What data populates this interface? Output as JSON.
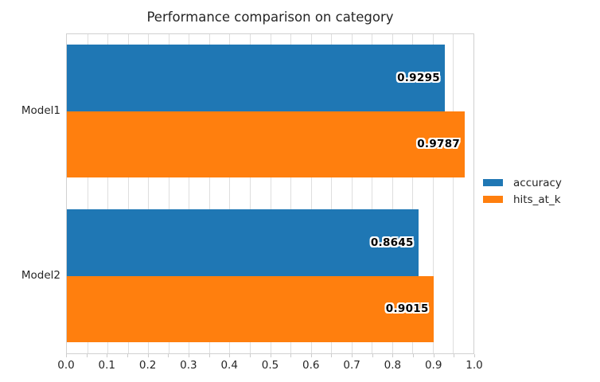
{
  "chart_data": {
    "type": "bar",
    "orientation": "horizontal",
    "title": "Performance comparison on category",
    "categories": [
      "Model1",
      "Model2"
    ],
    "series": [
      {
        "name": "accuracy",
        "color": "#1f77b4",
        "values": [
          0.9295,
          0.8645
        ],
        "labels": [
          "0.9295",
          "0.8645"
        ]
      },
      {
        "name": "hits_at_k",
        "color": "#ff7f0e",
        "values": [
          0.9787,
          0.9015
        ],
        "labels": [
          "0.9787",
          "0.9015"
        ]
      }
    ],
    "xlim": [
      0.0,
      1.0
    ],
    "x_tick_labels": [
      "0.0",
      "0.1",
      "0.2",
      "0.3",
      "0.4",
      "0.5",
      "0.6",
      "0.7",
      "0.8",
      "0.9",
      "1.0"
    ],
    "minor_grid_step": 0.05,
    "grid": true,
    "legend": {
      "position": "center-right-outside",
      "entries": [
        "accuracy",
        "hits_at_k"
      ]
    },
    "colors": {
      "background": "#ffffff",
      "grid": "#dedede",
      "spine": "#d0d0d0",
      "tick": "#cccccc",
      "text": "#262626",
      "bar_label_fill": "#000000",
      "bar_label_outline": "#ffffff"
    }
  }
}
